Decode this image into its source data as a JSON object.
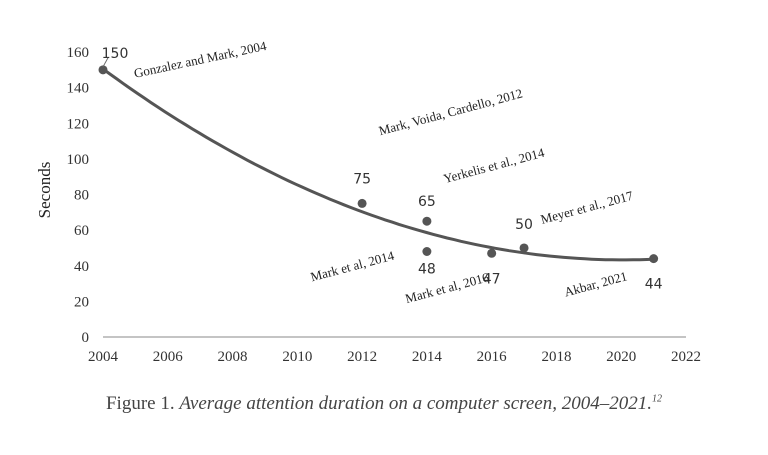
{
  "chart_data": {
    "type": "scatter",
    "ylabel": "Seconds",
    "xlim": [
      2004,
      2022
    ],
    "ylim": [
      0,
      160
    ],
    "xticks": [
      "2004",
      "2006",
      "2008",
      "2010",
      "2012",
      "2014",
      "2016",
      "2018",
      "2020",
      "2022"
    ],
    "yticks": [
      "0",
      "20",
      "40",
      "60",
      "80",
      "100",
      "120",
      "140",
      "160"
    ],
    "grid": false,
    "trendline": true,
    "points": [
      {
        "x": 2004,
        "y": 150,
        "label": "150",
        "source": "Gonzalez and Mark, 2004"
      },
      {
        "x": 2012,
        "y": 75,
        "label": "75",
        "source": "Mark, Voida, Cardello, 2012"
      },
      {
        "x": 2014,
        "y": 65,
        "label": "65",
        "source": "Yerkelis et al., 2014"
      },
      {
        "x": 2014,
        "y": 48,
        "label": "48",
        "source": "Mark et al, 2014"
      },
      {
        "x": 2016,
        "y": 47,
        "label": "47",
        "source": "Mark et al, 2016"
      },
      {
        "x": 2017,
        "y": 50,
        "label": "50",
        "source": "Meyer et al., 2017"
      },
      {
        "x": 2021,
        "y": 44,
        "label": "44",
        "source": "Akbar, 2021"
      }
    ],
    "colors": {
      "points": "#555555",
      "trend": "#555555",
      "axis": "#888888"
    }
  },
  "caption": {
    "prefix": "Figure 1.",
    "text": "Average attention duration on a computer screen, 2004–2021.",
    "note": "12"
  }
}
